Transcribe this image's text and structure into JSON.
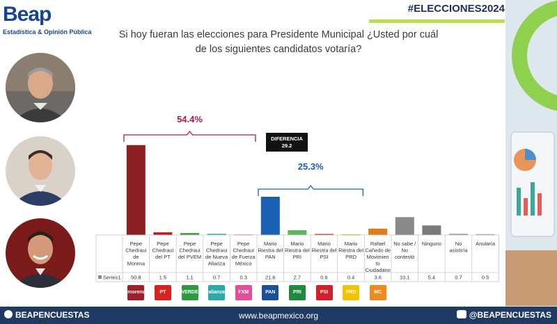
{
  "brand": {
    "name": "Beap",
    "tagline": "Estadística & Opinión Pública"
  },
  "hashtag": "#ELECCIONES2024",
  "question": {
    "line1": "Si hoy fueran las elecciones para Presidente Municipal ¿Usted por cuál",
    "line2": "de los siguientes candidatos votaría?"
  },
  "chart_data": {
    "type": "bar",
    "series_label": "Series1",
    "categories": [
      "Pepe Chedraui de Morena",
      "Pepe Chedraui del PT",
      "Pepe Chedraui del PVEM",
      "Pepe Chedraui de Nueva Alianza",
      "Pepe Chedraui de Fuerza México",
      "Mario Riestra del PAN",
      "Mario Riestra del PRI",
      "Mario Riestra del PSI",
      "Mario Riestra del PRD",
      "Rafael Cañedo de Movimiento Ciudadano",
      "No sabe / No contestó",
      "Ninguno",
      "No asistiría",
      "Anularía"
    ],
    "category_lines": [
      [
        "Pepe",
        "Chedraui",
        "de",
        "Morena"
      ],
      [
        "Pepe",
        "Chedraui",
        "del PT"
      ],
      [
        "Pepe",
        "Chedraui",
        "del PVEM"
      ],
      [
        "Pepe",
        "Chedraui",
        "de Nueva",
        "Alianza"
      ],
      [
        "Pepe",
        "Chedraui",
        "de Fuerza",
        "México"
      ],
      [
        "Mario",
        "Riestra del",
        "PAN"
      ],
      [
        "Mario",
        "Riestra del",
        "PRI"
      ],
      [
        "Mario",
        "Riestra del",
        "PSI"
      ],
      [
        "Mario",
        "Riestra del",
        "PRD"
      ],
      [
        "Rafael",
        "Cañedo de",
        "Movimien",
        "to",
        "Ciudadano"
      ],
      [
        "No sabe /",
        "No",
        "contestó"
      ],
      [
        "Ninguno"
      ],
      [
        "No",
        "asistiría"
      ],
      [
        "Anularía"
      ]
    ],
    "values": [
      50.8,
      1.5,
      1.1,
      0.7,
      0.3,
      21.6,
      2.7,
      0.6,
      0.4,
      3.6,
      10.1,
      5.4,
      0.7,
      0.5
    ],
    "value_labels": [
      "50.8",
      "1.5",
      "1.1",
      "0.7",
      "0.3",
      "21.6",
      "2.7",
      "0.6",
      "0.4",
      "3.6",
      "10.1",
      "5.4",
      "0.7",
      "0.5"
    ],
    "colors": [
      "#8b1f24",
      "#c4161c",
      "#3d9a3a",
      "#2bb0b4",
      "#d9458a",
      "#1a5fb4",
      "#5cb85c",
      "#c0392b",
      "#e0b000",
      "#e07c1a",
      "#8a8a8a",
      "#7a7a7a",
      "#9a9a9a",
      "#9a9a9a"
    ],
    "ylim": [
      0,
      55
    ],
    "groups": [
      {
        "label": "54.4%",
        "color": "#b0174a",
        "start": 0,
        "end": 4
      },
      {
        "label": "25.3%",
        "color": "#1a5fb4",
        "start": 5,
        "end": 8
      }
    ],
    "annotation": {
      "line1": "DIFERENCIA",
      "line2": "29.2"
    }
  },
  "parties": [
    {
      "name": "morena",
      "label": "morena",
      "color": "#a01d2b"
    },
    {
      "name": "pt",
      "label": "PT",
      "color": "#d6231f"
    },
    {
      "name": "verde",
      "label": "VERDE",
      "color": "#2e9a3f"
    },
    {
      "name": "nueva-alianza",
      "label": "alianza",
      "color": "#2aa9a9"
    },
    {
      "name": "fuerza-mexico",
      "label": "FXM",
      "color": "#e0509a"
    },
    {
      "name": "pan",
      "label": "PAN",
      "color": "#1a4f9c"
    },
    {
      "name": "pri",
      "label": "PRI",
      "color": "#1e8a3e"
    },
    {
      "name": "psi",
      "label": "PSI",
      "color": "#d21f2b"
    },
    {
      "name": "prd",
      "label": "PRD",
      "color": "#f2c300"
    },
    {
      "name": "movimiento-ciudadano",
      "label": "MC",
      "color": "#f08a1c"
    }
  ],
  "footer": {
    "left": "BEAPENCUESTAS",
    "center": "www.beapmexico.org",
    "right": "@BEAPENCUESTAS"
  }
}
